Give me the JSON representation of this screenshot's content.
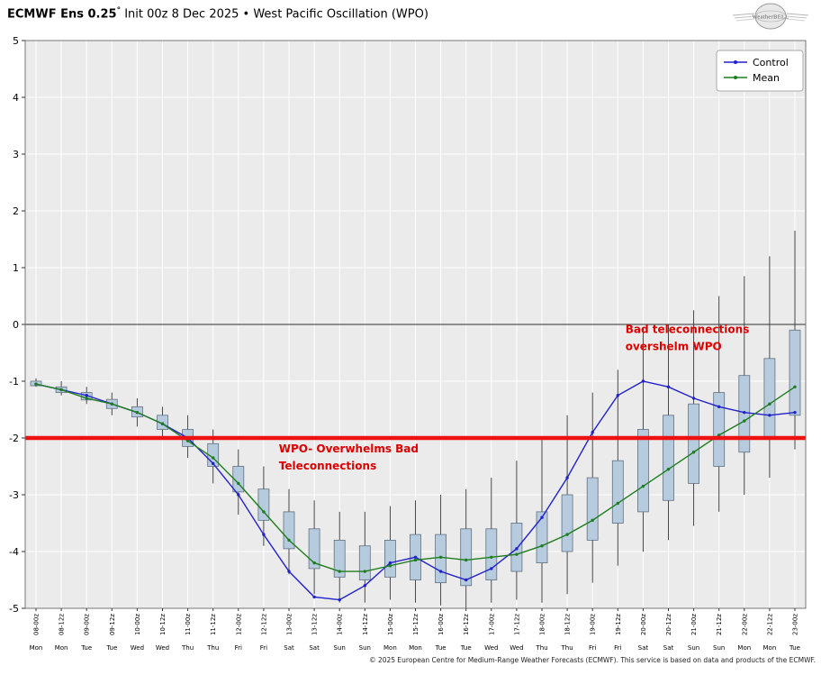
{
  "header": {
    "title_bold": "ECMWF Ens 0.25",
    "title_degree": "°",
    "title_rest": " Init 00z 8 Dec 2025 • West Pacific Oscillation (WPO)",
    "logo_text": "WeatherBELL"
  },
  "footer": "© 2025 European Centre for Medium-Range Weather Forecasts (ECMWF). This service is based on data and products of the ECMWF.",
  "colors": {
    "plot_bg": "#ebebeb",
    "grid": "#ffffff",
    "zero_line": "#555555",
    "frame": "#777777",
    "box_fill": "#b7cbdf",
    "box_stroke": "#60707f",
    "whisker": "#333333",
    "ref_line": "#ee1111",
    "annotation": "#dd0000"
  },
  "chart_data": {
    "type": "box+line",
    "title": "ECMWF Ens 0.25° Init 00z 8 Dec 2025 • West Pacific Oscillation (WPO)",
    "xlabel": "",
    "ylabel": "",
    "ylim": [
      -5,
      5
    ],
    "yticks": [
      5,
      4,
      3,
      2,
      1,
      0,
      -1,
      -2,
      -3,
      -4,
      -5
    ],
    "grid": true,
    "legend_position": "upper right",
    "reference_line": -2,
    "x_labels": [
      "08-00z",
      "08-12z",
      "09-00z",
      "09-12z",
      "10-00z",
      "10-12z",
      "11-00z",
      "11-12z",
      "12-00z",
      "12-12z",
      "13-00z",
      "13-12z",
      "14-00z",
      "14-12z",
      "15-00z",
      "15-12z",
      "16-00z",
      "16-12z",
      "17-00z",
      "17-12z",
      "18-00z",
      "18-12z",
      "19-00z",
      "19-12z",
      "20-00z",
      "20-12z",
      "21-00z",
      "21-12z",
      "22-00z",
      "22-12z",
      "23-00z"
    ],
    "day_labels": [
      "Mon",
      "Mon",
      "Tue",
      "Tue",
      "Wed",
      "Wed",
      "Thu",
      "Thu",
      "Fri",
      "Fri",
      "Sat",
      "Sat",
      "Sun",
      "Sun",
      "Mon",
      "Mon",
      "Tue",
      "Tue",
      "Wed",
      "Wed",
      "Thu",
      "Thu",
      "Fri",
      "Fri",
      "Sat",
      "Sat",
      "Sun",
      "Sun",
      "Mon",
      "Mon",
      "Tue"
    ],
    "series": [
      {
        "name": "Control",
        "color": "#2121cc",
        "values": [
          -1.05,
          -1.15,
          -1.25,
          -1.4,
          -1.55,
          -1.75,
          -2.0,
          -2.45,
          -3.0,
          -3.7,
          -4.35,
          -4.8,
          -4.85,
          -4.6,
          -4.2,
          -4.1,
          -4.35,
          -4.5,
          -4.3,
          -3.95,
          -3.4,
          -2.7,
          -1.9,
          -1.25,
          -1.0,
          -1.1,
          -1.3,
          -1.45,
          -1.55,
          -1.6,
          -1.55
        ]
      },
      {
        "name": "Mean",
        "color": "#1f7d1f",
        "values": [
          -1.05,
          -1.15,
          -1.3,
          -1.4,
          -1.55,
          -1.75,
          -2.05,
          -2.35,
          -2.8,
          -3.3,
          -3.8,
          -4.2,
          -4.35,
          -4.35,
          -4.25,
          -4.15,
          -4.1,
          -4.15,
          -4.1,
          -4.05,
          -3.9,
          -3.7,
          -3.45,
          -3.15,
          -2.85,
          -2.55,
          -2.25,
          -1.95,
          -1.7,
          -1.4,
          -1.1
        ]
      }
    ],
    "whisker_low": [
      -1.1,
      -1.25,
      -1.4,
      -1.6,
      -1.8,
      -2.0,
      -2.35,
      -2.8,
      -3.35,
      -3.9,
      -4.4,
      -4.75,
      -4.9,
      -4.9,
      -4.85,
      -4.9,
      -4.95,
      -5.0,
      -4.9,
      -4.85,
      -4.9,
      -4.75,
      -4.55,
      -4.25,
      -4.0,
      -3.8,
      -3.55,
      -3.3,
      -3.0,
      -2.7,
      -2.2
    ],
    "box_low": [
      -1.08,
      -1.2,
      -1.33,
      -1.48,
      -1.63,
      -1.85,
      -2.15,
      -2.5,
      -2.95,
      -3.45,
      -3.95,
      -4.3,
      -4.45,
      -4.5,
      -4.45,
      -4.5,
      -4.55,
      -4.6,
      -4.5,
      -4.35,
      -4.2,
      -4.0,
      -3.8,
      -3.5,
      -3.3,
      -3.1,
      -2.8,
      -2.5,
      -2.25,
      -2.0,
      -1.6
    ],
    "box_high": [
      -1.0,
      -1.1,
      -1.2,
      -1.32,
      -1.45,
      -1.6,
      -1.85,
      -2.1,
      -2.5,
      -2.9,
      -3.3,
      -3.6,
      -3.8,
      -3.9,
      -3.8,
      -3.7,
      -3.7,
      -3.6,
      -3.6,
      -3.5,
      -3.3,
      -3.0,
      -2.7,
      -2.4,
      -1.85,
      -1.6,
      -1.4,
      -1.2,
      -0.9,
      -0.6,
      -0.1
    ],
    "whisker_high": [
      -0.95,
      -1.0,
      -1.1,
      -1.2,
      -1.3,
      -1.45,
      -1.6,
      -1.85,
      -2.2,
      -2.5,
      -2.9,
      -3.1,
      -3.3,
      -3.3,
      -3.2,
      -3.1,
      -3.0,
      -2.9,
      -2.7,
      -2.4,
      -2.0,
      -1.6,
      -1.2,
      -0.8,
      -0.05,
      0.0,
      0.25,
      0.5,
      0.85,
      1.2,
      1.65
    ],
    "annotations": [
      {
        "lines": [
          "Bad teleconnections",
          "overshelm WPO"
        ],
        "x_index": 23.3,
        "y": -0.15
      },
      {
        "lines": [
          "WPO- Overwhelms Bad",
          "Teleconnections"
        ],
        "x_index": 9.6,
        "y": -2.25
      }
    ]
  }
}
